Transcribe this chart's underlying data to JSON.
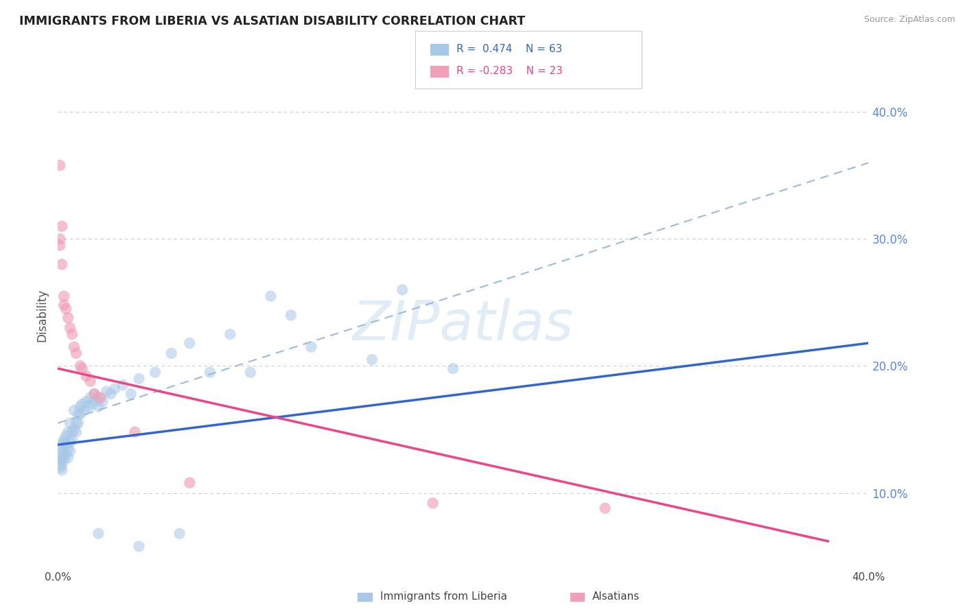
{
  "title": "IMMIGRANTS FROM LIBERIA VS ALSATIAN DISABILITY CORRELATION CHART",
  "source": "Source: ZipAtlas.com",
  "ylabel": "Disability",
  "xlim": [
    0.0,
    0.4
  ],
  "ylim": [
    0.04,
    0.44
  ],
  "yticks": [
    0.1,
    0.2,
    0.3,
    0.4
  ],
  "ytick_labels": [
    "10.0%",
    "20.0%",
    "30.0%",
    "40.0%"
  ],
  "blue_color": "#a8c8e8",
  "pink_color": "#f0a0b8",
  "trendline_blue": "#3366cc",
  "trendline_pink": "#ee4488",
  "trendline_dash_color": "#99bbdd",
  "blue_scatter": [
    [
      0.001,
      0.138
    ],
    [
      0.001,
      0.13
    ],
    [
      0.001,
      0.125
    ],
    [
      0.001,
      0.12
    ],
    [
      0.002,
      0.135
    ],
    [
      0.002,
      0.128
    ],
    [
      0.002,
      0.122
    ],
    [
      0.002,
      0.118
    ],
    [
      0.003,
      0.14
    ],
    [
      0.003,
      0.132
    ],
    [
      0.003,
      0.126
    ],
    [
      0.003,
      0.142
    ],
    [
      0.004,
      0.138
    ],
    [
      0.004,
      0.13
    ],
    [
      0.004,
      0.145
    ],
    [
      0.005,
      0.135
    ],
    [
      0.005,
      0.128
    ],
    [
      0.005,
      0.148
    ],
    [
      0.006,
      0.14
    ],
    [
      0.006,
      0.133
    ],
    [
      0.006,
      0.155
    ],
    [
      0.007,
      0.148
    ],
    [
      0.007,
      0.142
    ],
    [
      0.008,
      0.15
    ],
    [
      0.008,
      0.165
    ],
    [
      0.009,
      0.155
    ],
    [
      0.009,
      0.148
    ],
    [
      0.01,
      0.162
    ],
    [
      0.01,
      0.155
    ],
    [
      0.011,
      0.168
    ],
    [
      0.011,
      0.162
    ],
    [
      0.012,
      0.17
    ],
    [
      0.013,
      0.165
    ],
    [
      0.014,
      0.172
    ],
    [
      0.015,
      0.168
    ],
    [
      0.016,
      0.175
    ],
    [
      0.017,
      0.17
    ],
    [
      0.018,
      0.178
    ],
    [
      0.019,
      0.173
    ],
    [
      0.02,
      0.168
    ],
    [
      0.02,
      0.175
    ],
    [
      0.022,
      0.172
    ],
    [
      0.024,
      0.18
    ],
    [
      0.026,
      0.178
    ],
    [
      0.028,
      0.182
    ],
    [
      0.032,
      0.185
    ],
    [
      0.036,
      0.178
    ],
    [
      0.04,
      0.19
    ],
    [
      0.048,
      0.195
    ],
    [
      0.056,
      0.21
    ],
    [
      0.065,
      0.218
    ],
    [
      0.075,
      0.195
    ],
    [
      0.085,
      0.225
    ],
    [
      0.095,
      0.195
    ],
    [
      0.105,
      0.255
    ],
    [
      0.115,
      0.24
    ],
    [
      0.125,
      0.215
    ],
    [
      0.155,
      0.205
    ],
    [
      0.17,
      0.26
    ],
    [
      0.195,
      0.198
    ],
    [
      0.02,
      0.068
    ],
    [
      0.04,
      0.058
    ],
    [
      0.06,
      0.068
    ]
  ],
  "pink_scatter": [
    [
      0.001,
      0.358
    ],
    [
      0.001,
      0.3
    ],
    [
      0.001,
      0.295
    ],
    [
      0.002,
      0.31
    ],
    [
      0.002,
      0.28
    ],
    [
      0.003,
      0.255
    ],
    [
      0.003,
      0.248
    ],
    [
      0.004,
      0.245
    ],
    [
      0.005,
      0.238
    ],
    [
      0.006,
      0.23
    ],
    [
      0.007,
      0.225
    ],
    [
      0.008,
      0.215
    ],
    [
      0.009,
      0.21
    ],
    [
      0.011,
      0.2
    ],
    [
      0.012,
      0.198
    ],
    [
      0.014,
      0.192
    ],
    [
      0.016,
      0.188
    ],
    [
      0.018,
      0.178
    ],
    [
      0.021,
      0.175
    ],
    [
      0.038,
      0.148
    ],
    [
      0.065,
      0.108
    ],
    [
      0.185,
      0.092
    ],
    [
      0.27,
      0.088
    ]
  ],
  "blue_trend_x": [
    0.0,
    0.4
  ],
  "blue_trend_y": [
    0.138,
    0.218
  ],
  "dash_trend_x": [
    0.0,
    0.4
  ],
  "dash_trend_y": [
    0.155,
    0.36
  ],
  "pink_trend_x": [
    0.0,
    0.38
  ],
  "pink_trend_y": [
    0.198,
    0.062
  ]
}
